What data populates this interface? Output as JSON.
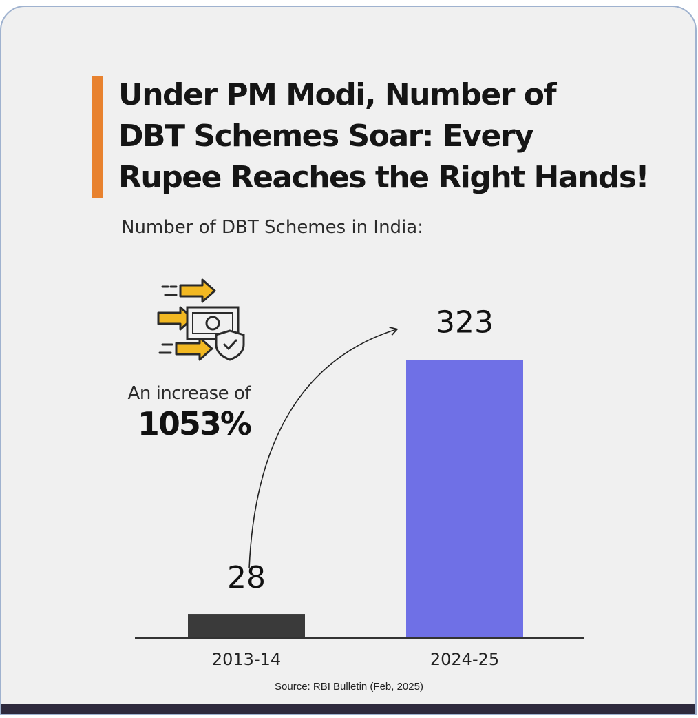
{
  "title_lines": [
    "Under PM Modi, Number of",
    "DBT Schemes Soar: Every",
    "Rupee Reaches the Right Hands!"
  ],
  "subtitle": "Number of DBT Schemes in India:",
  "increase": {
    "label": "An increase of",
    "value": "1053%"
  },
  "source": "Source: RBI Bulletin (Feb, 2025)",
  "icon": "money-transfer-icon",
  "colors": {
    "accent": "#e8822f",
    "bar_2013": "#3a3a3a",
    "bar_2024": "#6f70e6",
    "background": "#f0f0f0"
  },
  "chart_data": {
    "type": "bar",
    "categories": [
      "2013-14",
      "2024-25"
    ],
    "values": [
      28,
      323
    ],
    "value_labels": [
      "28",
      "323"
    ],
    "title": "Number of DBT Schemes in India:",
    "xlabel": "",
    "ylabel": "",
    "ylim": [
      0,
      340
    ],
    "grid": false,
    "annotation": "An increase of 1053%"
  }
}
